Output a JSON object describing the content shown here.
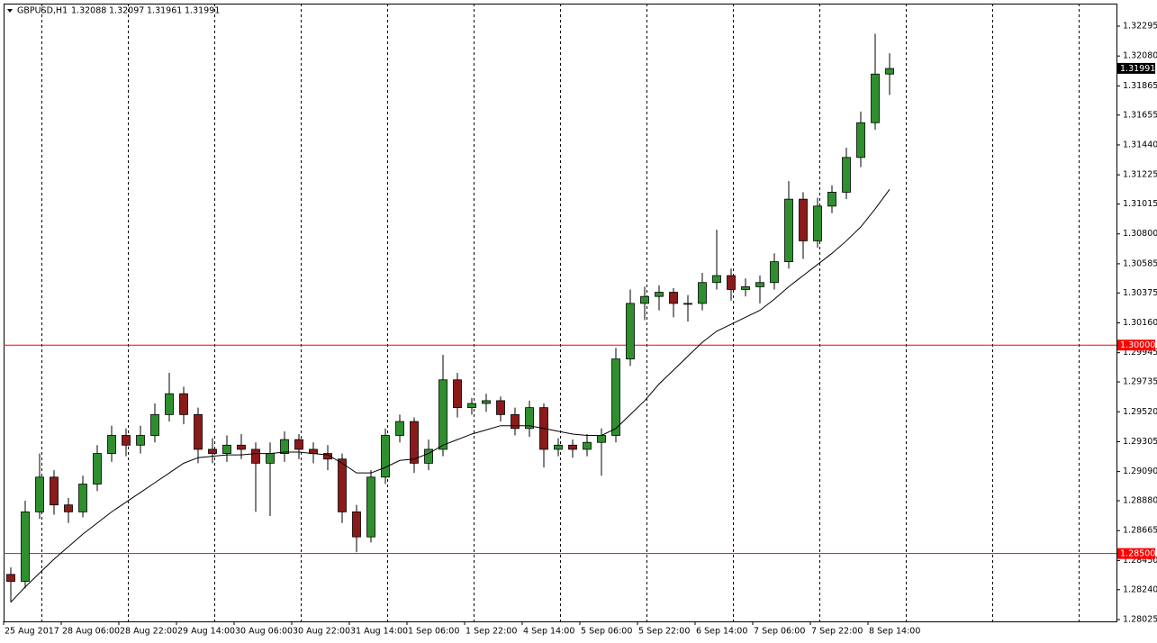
{
  "chart_data": {
    "type": "candlestick",
    "title": "GBPUSD,H1",
    "last_bar": [
      1.32088,
      1.32097,
      1.31961,
      1.31991
    ],
    "current_price": 1.31991,
    "x": [
      2,
      6,
      10,
      14,
      18,
      22,
      26,
      30,
      34,
      38,
      42,
      46,
      50,
      54,
      58,
      62,
      66,
      70,
      74,
      78,
      82,
      86,
      90,
      94,
      98,
      102,
      106,
      110,
      114,
      118,
      122,
      126,
      130,
      134,
      138,
      142,
      146,
      150,
      154,
      158,
      162,
      166,
      170,
      174,
      178,
      182,
      186,
      190,
      194,
      198,
      202,
      206,
      210,
      214,
      218,
      222,
      226,
      230,
      234,
      238,
      242,
      246
    ],
    "open": [
      1.2835,
      1.283,
      1.288,
      1.2905,
      1.2885,
      1.288,
      1.29,
      1.2922,
      1.2935,
      1.2928,
      1.2935,
      1.295,
      1.2965,
      1.295,
      1.2925,
      1.2922,
      1.2928,
      1.2925,
      1.2915,
      1.2922,
      1.2932,
      1.2925,
      1.2922,
      1.2918,
      1.288,
      1.2862,
      1.2905,
      1.2935,
      1.2945,
      1.2915,
      1.2925,
      1.2975,
      1.2955,
      1.2958,
      1.296,
      1.295,
      1.294,
      1.2955,
      1.2925,
      1.2928,
      1.2925,
      1.293,
      1.2935,
      1.299,
      1.303,
      1.3035,
      1.3038,
      1.303,
      1.303,
      1.3045,
      1.305,
      1.304,
      1.3042,
      1.3045,
      1.306,
      1.3105,
      1.3075,
      1.31,
      1.311,
      1.3135,
      1.316,
      1.3195
    ],
    "high": [
      1.284,
      1.2888,
      1.2922,
      1.291,
      1.289,
      1.2906,
      1.2928,
      1.2942,
      1.294,
      1.2942,
      1.2958,
      1.298,
      1.297,
      1.2955,
      1.2933,
      1.2935,
      1.2936,
      1.293,
      1.293,
      1.2938,
      1.2936,
      1.293,
      1.2928,
      1.2922,
      1.2885,
      1.291,
      1.294,
      1.295,
      1.2948,
      1.2932,
      1.2993,
      1.298,
      1.2962,
      1.2965,
      1.2963,
      1.2955,
      1.296,
      1.2958,
      1.2933,
      1.2932,
      1.2936,
      1.294,
      1.2998,
      1.304,
      1.3042,
      1.3043,
      1.3041,
      1.3036,
      1.3052,
      1.3083,
      1.3055,
      1.3048,
      1.305,
      1.3066,
      1.3118,
      1.311,
      1.3106,
      1.3115,
      1.3142,
      1.3168,
      1.3224,
      1.321
    ],
    "low": [
      1.2815,
      1.2825,
      1.2875,
      1.2878,
      1.2872,
      1.2876,
      1.2895,
      1.2916,
      1.292,
      1.2922,
      1.293,
      1.2945,
      1.2943,
      1.2915,
      1.2915,
      1.2916,
      1.2918,
      1.288,
      1.2877,
      1.2916,
      1.2918,
      1.2915,
      1.291,
      1.2872,
      1.2851,
      1.2858,
      1.29,
      1.293,
      1.2908,
      1.291,
      1.292,
      1.2948,
      1.295,
      1.2952,
      1.2945,
      1.2935,
      1.2934,
      1.2912,
      1.292,
      1.2919,
      1.292,
      1.2906,
      1.293,
      1.2985,
      1.3018,
      1.3025,
      1.302,
      1.3017,
      1.3025,
      1.304,
      1.3032,
      1.3035,
      1.303,
      1.304,
      1.3055,
      1.3062,
      1.307,
      1.3095,
      1.3105,
      1.3128,
      1.3155,
      1.318
    ],
    "close": [
      1.283,
      1.288,
      1.2905,
      1.2885,
      1.288,
      1.29,
      1.2922,
      1.2935,
      1.2928,
      1.2935,
      1.295,
      1.2965,
      1.295,
      1.2925,
      1.2922,
      1.2928,
      1.2925,
      1.2915,
      1.2922,
      1.2932,
      1.2925,
      1.2922,
      1.2918,
      1.288,
      1.2862,
      1.2905,
      1.2935,
      1.2945,
      1.2915,
      1.2925,
      1.2975,
      1.2955,
      1.2958,
      1.296,
      1.295,
      1.294,
      1.2955,
      1.2925,
      1.2928,
      1.2925,
      1.293,
      1.2935,
      1.299,
      1.303,
      1.3035,
      1.3038,
      1.303,
      1.303,
      1.3045,
      1.305,
      1.304,
      1.3042,
      1.3045,
      1.306,
      1.3105,
      1.3075,
      1.31,
      1.311,
      1.3135,
      1.316,
      1.3195,
      1.3199
    ],
    "moving_average": [
      1.2815,
      1.2826,
      1.2836,
      1.2846,
      1.2855,
      1.2864,
      1.2872,
      1.288,
      1.2887,
      1.2894,
      1.2901,
      1.2908,
      1.2915,
      1.2919,
      1.292,
      1.2921,
      1.2921,
      1.2922,
      1.2922,
      1.2923,
      1.2923,
      1.2922,
      1.2921,
      1.2915,
      1.2908,
      1.2908,
      1.2912,
      1.2917,
      1.2918,
      1.2922,
      1.2928,
      1.2932,
      1.2936,
      1.2939,
      1.2942,
      1.2942,
      1.2942,
      1.294,
      1.2938,
      1.2936,
      1.2935,
      1.2935,
      1.294,
      1.295,
      1.296,
      1.2972,
      1.2982,
      1.2992,
      1.3002,
      1.301,
      1.3015,
      1.302,
      1.3025,
      1.3033,
      1.3042,
      1.305,
      1.3058,
      1.3066,
      1.3075,
      1.3085,
      1.3098,
      1.3112
    ],
    "up_color": "#2f8f2f",
    "down_color": "#8b1a1a",
    "ma_color": "#000000",
    "levels": [
      {
        "value": 1.3,
        "label": "1.30000"
      },
      {
        "value": 1.285,
        "label": "1.28500"
      }
    ],
    "level_color": "#ff0000",
    "xlim": [
      0,
      309
    ],
    "xticks": [
      {
        "value": 0,
        "label": "25 Aug 2017"
      },
      {
        "value": 16,
        "label": "28 Aug 06:00"
      },
      {
        "value": 32,
        "label": "28 Aug 22:00"
      },
      {
        "value": 48,
        "label": "29 Aug 14:00"
      },
      {
        "value": 64,
        "label": "30 Aug 06:00"
      },
      {
        "value": 80,
        "label": "30 Aug 22:00"
      },
      {
        "value": 96,
        "label": "31 Aug 14:00"
      },
      {
        "value": 112,
        "label": "1 Sep 06:00"
      },
      {
        "value": 128,
        "label": "1 Sep 22:00"
      },
      {
        "value": 144,
        "label": "4 Sep 14:00"
      },
      {
        "value": 160,
        "label": "5 Sep 06:00"
      },
      {
        "value": 176,
        "label": "5 Sep 22:00"
      },
      {
        "value": 192,
        "label": "6 Sep 14:00"
      },
      {
        "value": 208,
        "label": "7 Sep 06:00"
      },
      {
        "value": 224,
        "label": "7 Sep 22:00"
      },
      {
        "value": 240,
        "label": "8 Sep 14:00"
      }
    ],
    "ylim": [
      1.28012,
      1.32457
    ],
    "yticks": [
      {
        "value": 1.32295,
        "label": "1.32295"
      },
      {
        "value": 1.3208,
        "label": "1.32080"
      },
      {
        "value": 1.31865,
        "label": "1.31865"
      },
      {
        "value": 1.31655,
        "label": "1.31655"
      },
      {
        "value": 1.3144,
        "label": "1.31440"
      },
      {
        "value": 1.31225,
        "label": "1.31225"
      },
      {
        "value": 1.31015,
        "label": "1.31015"
      },
      {
        "value": 1.308,
        "label": "1.30800"
      },
      {
        "value": 1.30585,
        "label": "1.30585"
      },
      {
        "value": 1.30375,
        "label": "1.30375"
      },
      {
        "value": 1.3016,
        "label": "1.30160"
      },
      {
        "value": 1.29945,
        "label": "1.29945"
      },
      {
        "value": 1.29735,
        "label": "1.29735"
      },
      {
        "value": 1.2952,
        "label": "1.29520"
      },
      {
        "value": 1.29305,
        "label": "1.29305"
      },
      {
        "value": 1.2909,
        "label": "1.29090"
      },
      {
        "value": 1.2888,
        "label": "1.28880"
      },
      {
        "value": 1.28665,
        "label": "1.28665"
      },
      {
        "value": 1.2845,
        "label": "1.28450"
      },
      {
        "value": 1.2824,
        "label": "1.28240"
      },
      {
        "value": 1.28025,
        "label": "1.28025"
      }
    ]
  }
}
